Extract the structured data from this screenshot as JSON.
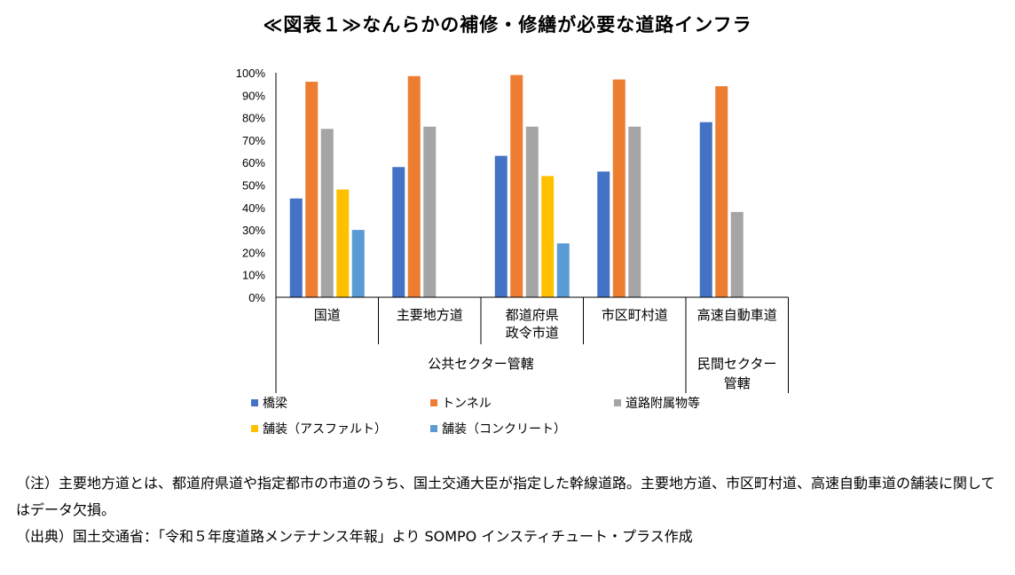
{
  "title": "≪図表１≫なんらかの補修・修繕が必要な道路インフラ",
  "chart_data": {
    "type": "bar",
    "categories": [
      "国道",
      "主要地方道",
      "都道府県\n政令市道",
      "市区町村道",
      "高速自動車道"
    ],
    "series": [
      {
        "name": "橋梁",
        "color": "#4472C4",
        "values": [
          44,
          58,
          63,
          56,
          78
        ]
      },
      {
        "name": "トンネル",
        "color": "#ED7D31",
        "values": [
          96,
          98.5,
          99,
          97,
          94
        ]
      },
      {
        "name": "道路附属物等",
        "color": "#A5A5A5",
        "values": [
          75,
          76,
          76,
          76,
          38
        ]
      },
      {
        "name": "舗装（アスファルト）",
        "color": "#FFC000",
        "values": [
          48,
          null,
          54,
          null,
          null
        ]
      },
      {
        "name": "舗装（コンクリート）",
        "color": "#5B9BD5",
        "values": [
          30,
          null,
          24,
          null,
          null
        ]
      }
    ],
    "y_ticks": [
      "0%",
      "10%",
      "20%",
      "30%",
      "40%",
      "50%",
      "60%",
      "70%",
      "80%",
      "90%",
      "100%"
    ],
    "ylim": [
      0,
      100
    ],
    "groups": [
      {
        "label": "公共セクター管轄",
        "categories": [
          0,
          1,
          2,
          3
        ]
      },
      {
        "label": "民間セクター\n管轄",
        "categories": [
          4
        ]
      }
    ],
    "grid": false,
    "legend": "bottom"
  },
  "notes": [
    "（注）主要地方道とは、都道府県道や指定都市の市道のうち、国土交通大臣が指定した幹線道路。主要地方道、市区町村道、高速自動車道の舗装に関してはデータ欠損。",
    "（出典）国土交通省：「令和５年度道路メンテナンス年報」より SOMPO インスティチュート・プラス作成"
  ]
}
